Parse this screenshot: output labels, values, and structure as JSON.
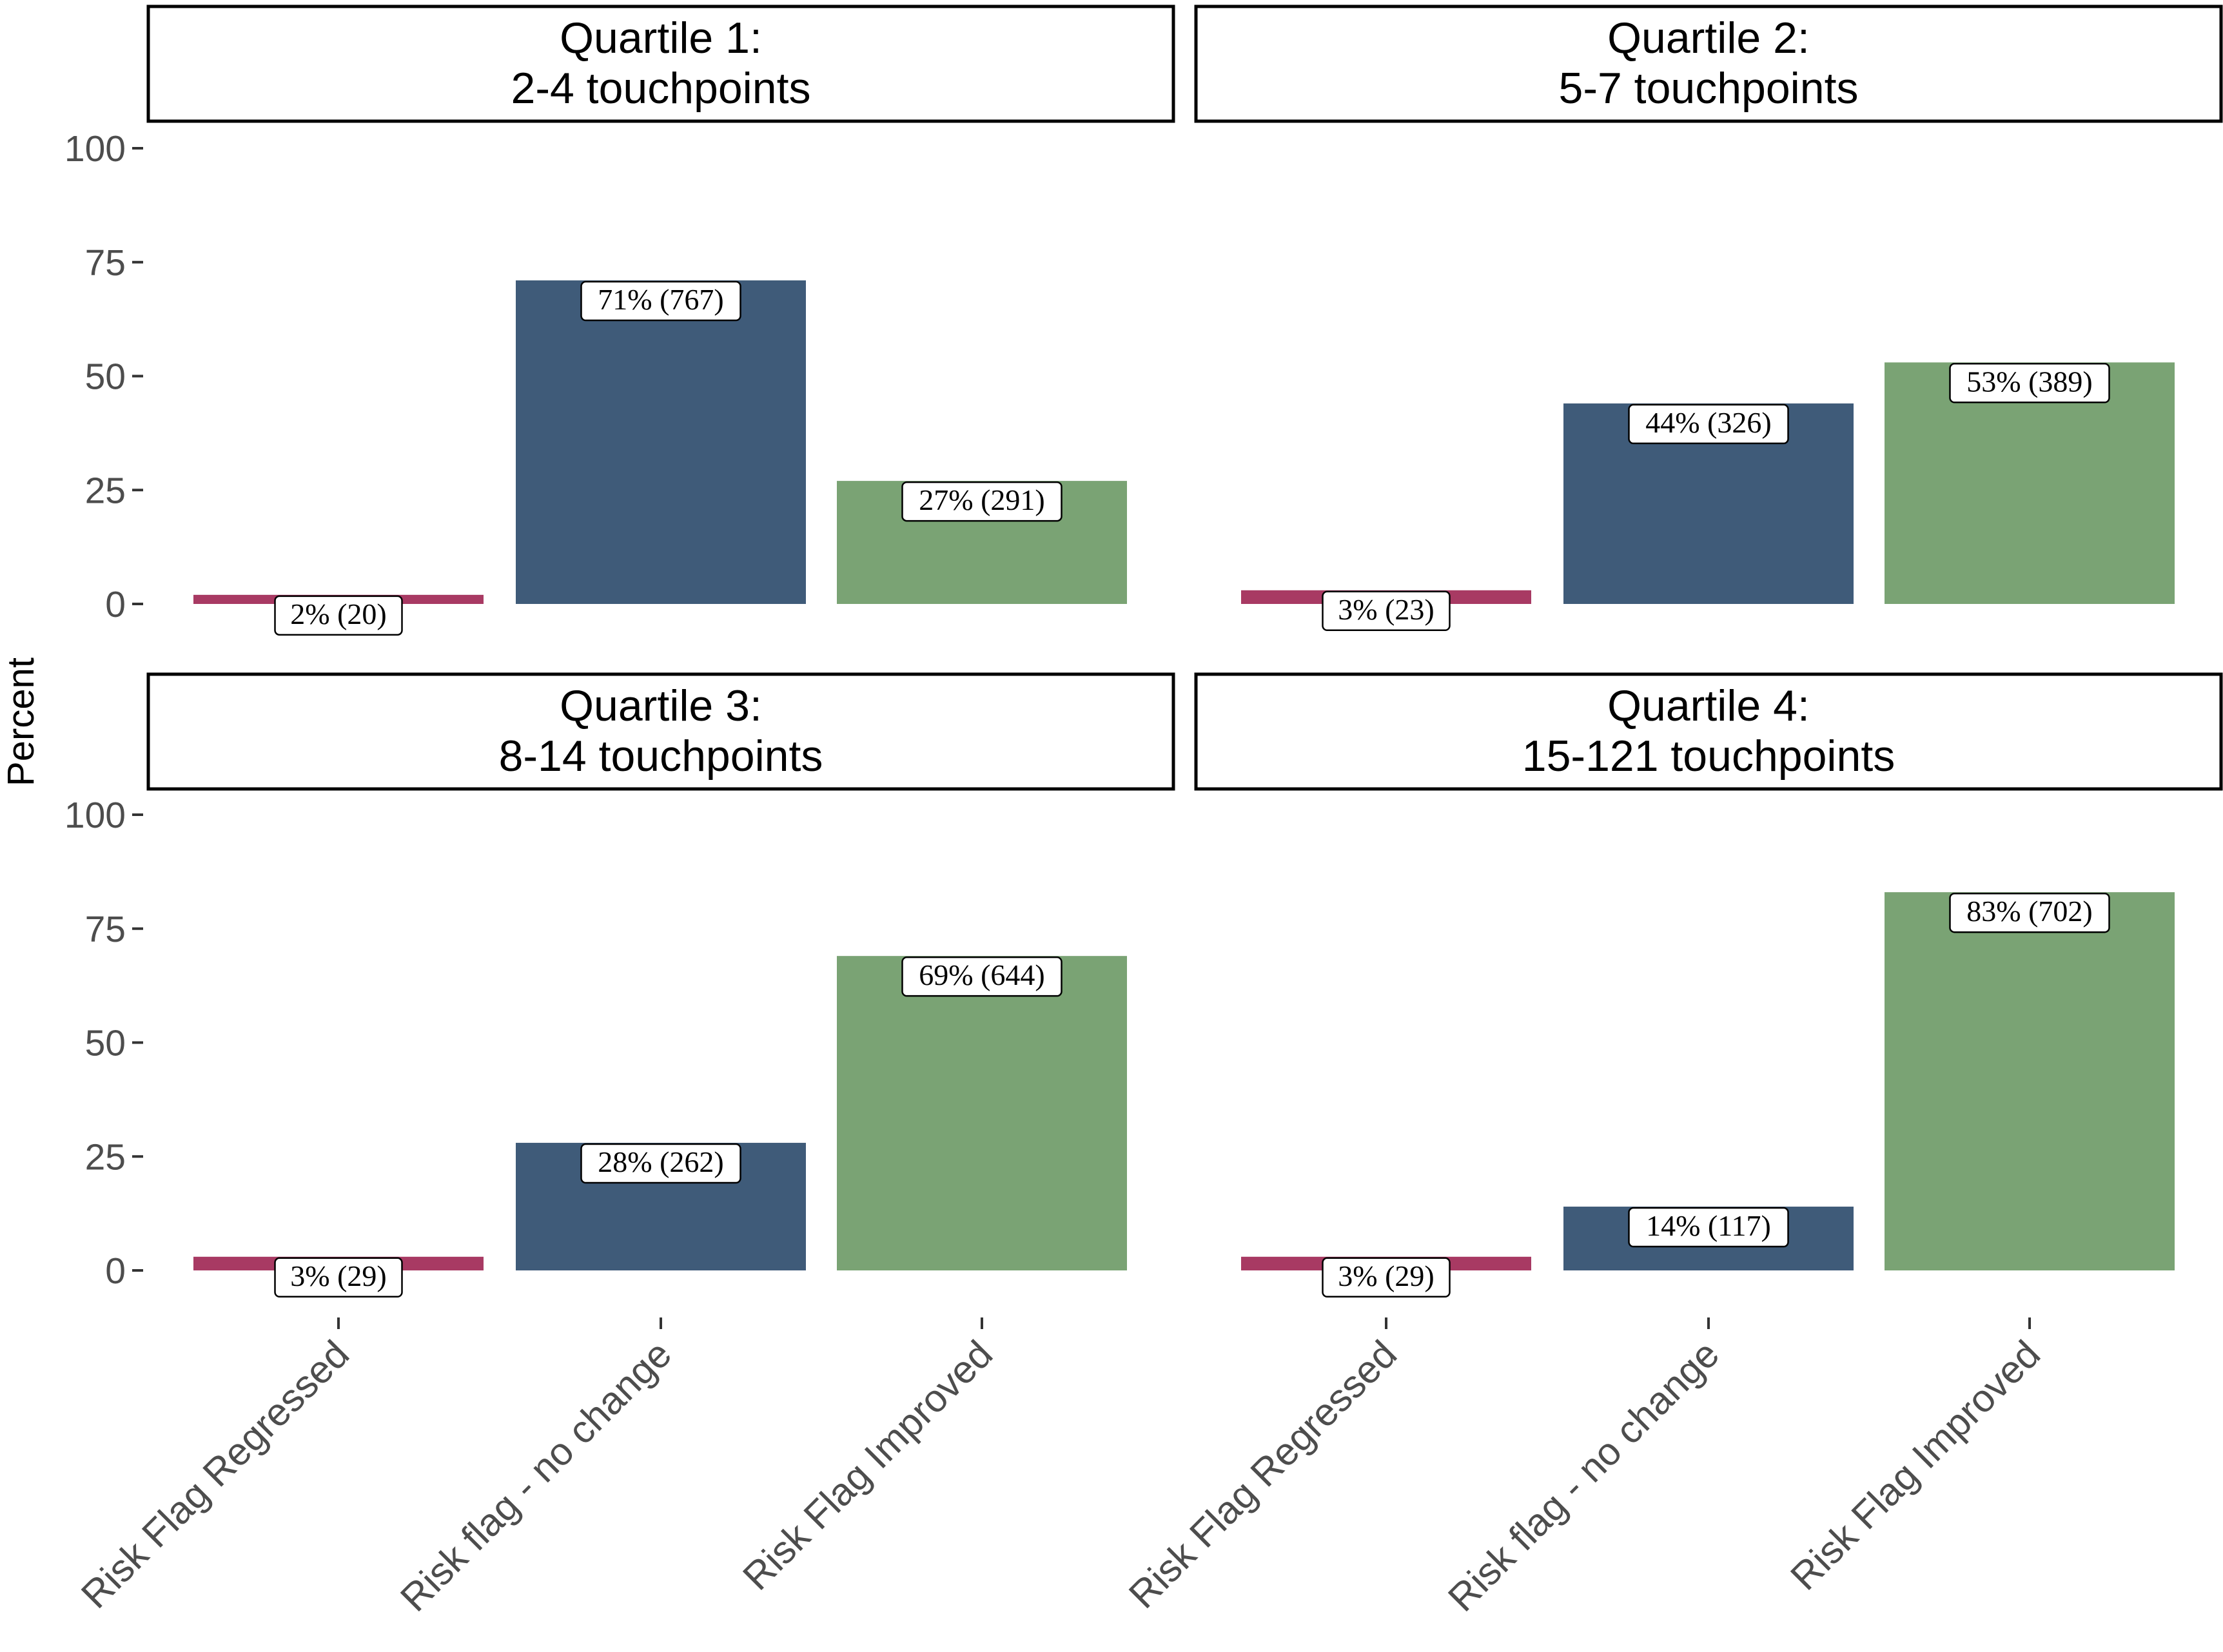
{
  "chart_data": {
    "type": "bar",
    "ylabel": "Percent",
    "ylim": [
      0,
      100
    ],
    "yticks": [
      0,
      25,
      50,
      75,
      100
    ],
    "categories": [
      "Risk Flag Regressed",
      "Risk flag - no change",
      "Risk Flag Improved"
    ],
    "colors": [
      "#a83a63",
      "#3f5b79",
      "#7aa374"
    ],
    "panels": [
      {
        "title": [
          "Quartile 1:",
          "2-4 touchpoints"
        ],
        "values": [
          2,
          71,
          27
        ],
        "labels": [
          "2% (20)",
          "71% (767)",
          "27% (291)"
        ]
      },
      {
        "title": [
          "Quartile 2:",
          "5-7 touchpoints"
        ],
        "values": [
          3,
          44,
          53
        ],
        "labels": [
          "3% (23)",
          "44% (326)",
          "53% (389)"
        ]
      },
      {
        "title": [
          "Quartile 3:",
          "8-14 touchpoints"
        ],
        "values": [
          3,
          28,
          69
        ],
        "labels": [
          "3% (29)",
          "28% (262)",
          "69% (644)"
        ]
      },
      {
        "title": [
          "Quartile 4:",
          "15-121 touchpoints"
        ],
        "values": [
          3,
          14,
          83
        ],
        "labels": [
          "3% (29)",
          "14% (117)",
          "83% (702)"
        ]
      }
    ]
  }
}
